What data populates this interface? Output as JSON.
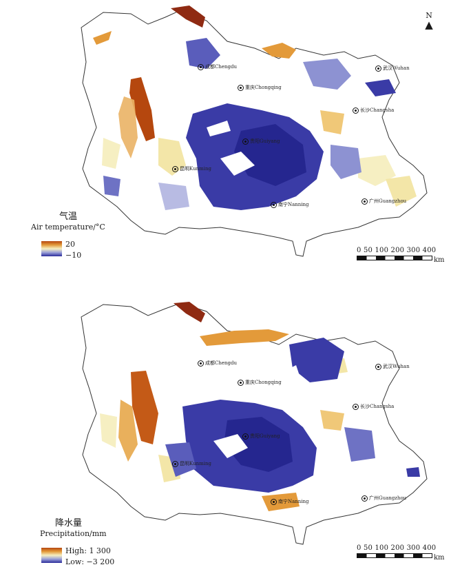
{
  "panels": [
    {
      "id": "temperature",
      "legend_title_cn": "气温",
      "legend_title_en": "Air temperature/°C",
      "legend_high": "20",
      "legend_low": "−10",
      "north_label": "N",
      "scale_numbers": "0 50 100 200 300 400",
      "scale_unit": "km",
      "cities": [
        {
          "name": "成都Chengdu"
        },
        {
          "name": "重庆Chongqing"
        },
        {
          "name": "武汉Wuhan"
        },
        {
          "name": "长沙Changsha"
        },
        {
          "name": "贵阳Guiyang"
        },
        {
          "name": "昆明Kunming"
        },
        {
          "name": "南宁Nanning"
        },
        {
          "name": "广州Guangzhou"
        }
      ]
    },
    {
      "id": "precipitation",
      "legend_title_cn": "降水量",
      "legend_title_en": "Precipitation/mm",
      "legend_high": "High: 1 300",
      "legend_low": "Low: −3 200",
      "scale_numbers": "0 50 100 200 300 400",
      "scale_unit": "km",
      "cities": [
        {
          "name": "成都Chengdu"
        },
        {
          "name": "重庆Chongqing"
        },
        {
          "name": "武汉Wuhan"
        },
        {
          "name": "长沙Changsha"
        },
        {
          "name": "贵阳Guiyang"
        },
        {
          "name": "昆明Kunming"
        },
        {
          "name": "南宁Nanning"
        },
        {
          "name": "广州Guangzhou"
        }
      ]
    }
  ],
  "colors": {
    "high": "#b5470e",
    "mid_high": "#e39a3a",
    "neutral": "#f6efc2",
    "mid_low": "#9aa0d8",
    "low": "#2a2b9a",
    "boundary": "#333333"
  }
}
